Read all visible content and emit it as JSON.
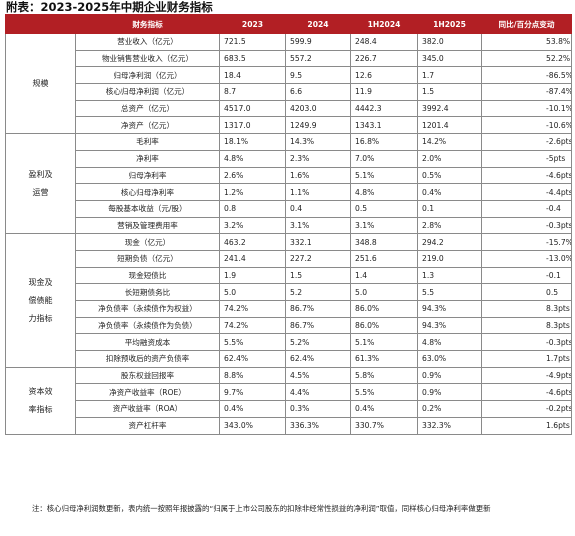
{
  "title": "附表：2023-2025年中期企业财务指标",
  "header": [
    "财务指标",
    "2023",
    "2024",
    "1H2024",
    "1H2025",
    "同比/百分点变动"
  ],
  "sections": [
    {
      "label": [
        "规模"
      ],
      "rows": [
        {
          "metric": "营业收入（亿元）",
          "values": [
            "721.5",
            "599.9",
            "248.4",
            "382.0",
            "53.8%"
          ]
        },
        {
          "metric": "物业销售营业收入（亿元）",
          "values": [
            "683.5",
            "557.2",
            "226.7",
            "345.0",
            "52.2%"
          ]
        },
        {
          "metric": "归母净利润（亿元）",
          "values": [
            "18.4",
            "9.5",
            "12.6",
            "1.7",
            "-86.5%"
          ]
        },
        {
          "metric": "核心归母净利润（亿元）",
          "values": [
            "8.7",
            "6.6",
            "11.9",
            "1.5",
            "-87.4%"
          ]
        },
        {
          "metric": "总资产（亿元）",
          "values": [
            "4517.0",
            "4203.0",
            "4442.3",
            "3992.4",
            "-10.1%"
          ]
        },
        {
          "metric": "净资产（亿元）",
          "values": [
            "1317.0",
            "1249.9",
            "1343.1",
            "1201.4",
            "-10.6%"
          ]
        }
      ]
    },
    {
      "label": [
        "盈利及",
        "运营"
      ],
      "rows": [
        {
          "metric": "毛利率",
          "values": [
            "18.1%",
            "14.3%",
            "16.8%",
            "14.2%",
            "-2.6pts"
          ]
        },
        {
          "metric": "净利率",
          "values": [
            "4.8%",
            "2.3%",
            "7.0%",
            "2.0%",
            "-5pts"
          ]
        },
        {
          "metric": "归母净利率",
          "values": [
            "2.6%",
            "1.6%",
            "5.1%",
            "0.5%",
            "-4.6pts"
          ]
        },
        {
          "metric": "核心归母净利率",
          "values": [
            "1.2%",
            "1.1%",
            "4.8%",
            "0.4%",
            "-4.4pts"
          ]
        },
        {
          "metric": "每股基本收益（元/股）",
          "values": [
            "0.8",
            "0.4",
            "0.5",
            "0.1",
            "-0.4"
          ]
        },
        {
          "metric": "营销及管理费用率",
          "values": [
            "3.2%",
            "3.1%",
            "3.1%",
            "2.8%",
            "-0.3pts"
          ]
        }
      ]
    },
    {
      "label": [
        "现金及",
        "偿债能",
        "力指标"
      ],
      "rows": [
        {
          "metric": "现金（亿元）",
          "values": [
            "463.2",
            "332.1",
            "348.8",
            "294.2",
            "-15.7%"
          ]
        },
        {
          "metric": "短期负债（亿元）",
          "values": [
            "241.4",
            "227.2",
            "251.6",
            "219.0",
            "-13.0%"
          ]
        },
        {
          "metric": "现金短债比",
          "values": [
            "1.9",
            "1.5",
            "1.4",
            "1.3",
            "-0.1"
          ]
        },
        {
          "metric": "长短期债务比",
          "values": [
            "5.0",
            "5.2",
            "5.0",
            "5.5",
            "0.5"
          ]
        },
        {
          "metric": "净负债率（永续债作为权益）",
          "values": [
            "74.2%",
            "86.7%",
            "86.0%",
            "94.3%",
            "8.3pts"
          ]
        },
        {
          "metric": "净负债率（永续债作为负债）",
          "values": [
            "74.2%",
            "86.7%",
            "86.0%",
            "94.3%",
            "8.3pts"
          ]
        },
        {
          "metric": "平均融资成本",
          "values": [
            "5.5%",
            "5.2%",
            "5.1%",
            "4.8%",
            "-0.3pts"
          ]
        },
        {
          "metric": "扣除预收后的资产负债率",
          "values": [
            "62.4%",
            "62.4%",
            "61.3%",
            "63.0%",
            "1.7pts"
          ]
        }
      ]
    },
    {
      "label": [
        "资本效",
        "率指标"
      ],
      "rows": [
        {
          "metric": "股东权益回报率",
          "values": [
            "8.8%",
            "4.5%",
            "5.8%",
            "0.9%",
            "-4.9pts"
          ]
        },
        {
          "metric": "净资产收益率（ROE）",
          "values": [
            "9.7%",
            "4.4%",
            "5.5%",
            "0.9%",
            "-4.6pts"
          ]
        },
        {
          "metric": "资产收益率（ROA）",
          "values": [
            "0.4%",
            "0.3%",
            "0.4%",
            "0.2%",
            "-0.2pts"
          ]
        },
        {
          "metric": "资产杠杆率",
          "values": [
            "343.0%",
            "336.3%",
            "330.7%",
            "332.3%",
            "1.6pts"
          ]
        }
      ]
    }
  ],
  "note": "注：核心归母净利润数更新，表内统一按照年报披露的“归属于上市公司股东的扣除非经常性损益的净利润”取值，同样核心归母净利率做更新"
}
